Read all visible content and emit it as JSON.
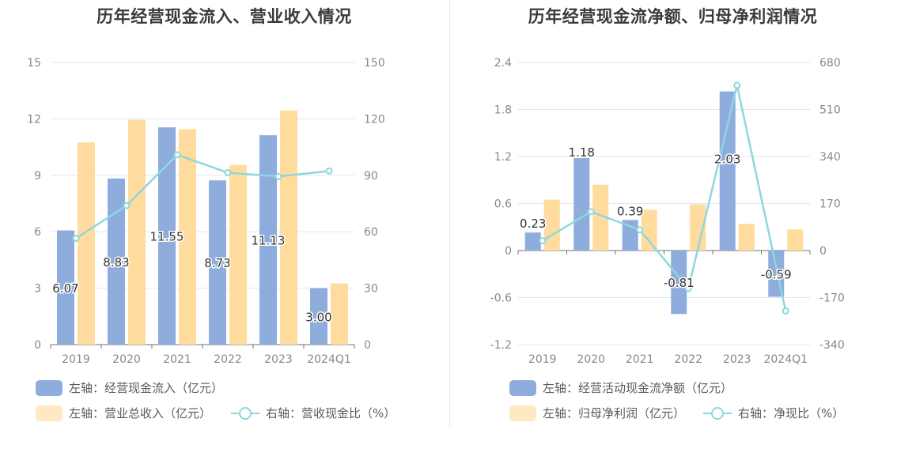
{
  "colors": {
    "bar_primary": "#8eaddc",
    "bar_secondary": "#ffdb9e",
    "line": "#8dd8dd",
    "grid": "#e3e6ef",
    "axis_text": "#888888",
    "label_text": "#333333"
  },
  "chart_data": [
    {
      "type": "bar",
      "title": "历年经营现金流入、营业收入情况",
      "categories": [
        "2019",
        "2020",
        "2021",
        "2022",
        "2023",
        "2024Q1"
      ],
      "y_left": {
        "ticks": [
          "0",
          "3",
          "6",
          "9",
          "12",
          "15"
        ],
        "min": 0,
        "max": 15
      },
      "y_right": {
        "ticks": [
          "0",
          "30",
          "60",
          "90",
          "120",
          "150"
        ],
        "min": 0,
        "max": 150
      },
      "series": [
        {
          "name": "左轴：经营现金流入（亿元）",
          "axis": "left",
          "kind": "bar",
          "values": [
            6.07,
            8.83,
            11.55,
            8.73,
            11.13,
            3.0
          ],
          "labels": [
            "6.07",
            "8.83",
            "11.55",
            "8.73",
            "11.13",
            "3.00"
          ]
        },
        {
          "name": "左轴：营业总收入（亿元）",
          "axis": "left",
          "kind": "bar",
          "values": [
            10.75,
            11.95,
            11.45,
            9.55,
            12.45,
            3.25
          ]
        },
        {
          "name": "右轴：营收现金比（%）",
          "axis": "right",
          "kind": "line",
          "values": [
            56.5,
            73.9,
            100.9,
            91.4,
            89.4,
            92.3
          ]
        }
      ],
      "legend": "bottom-left",
      "grid": true
    },
    {
      "type": "bar",
      "title": "历年经营现金流净额、归母净利润情况",
      "categories": [
        "2019",
        "2020",
        "2021",
        "2022",
        "2023",
        "2024Q1"
      ],
      "y_left": {
        "ticks": [
          "-1.2",
          "-0.6",
          "0",
          "0.6",
          "1.2",
          "1.8",
          "2.4"
        ],
        "min": -1.2,
        "max": 2.4
      },
      "y_right": {
        "ticks": [
          "-340",
          "-170",
          "0",
          "170",
          "340",
          "510",
          "680"
        ],
        "min": -340,
        "max": 680
      },
      "series": [
        {
          "name": "左轴：经营活动现金流净额（亿元）",
          "axis": "left",
          "kind": "bar",
          "values": [
            0.23,
            1.18,
            0.39,
            -0.81,
            2.03,
            -0.59
          ],
          "labels": [
            "0.23",
            "1.18",
            "0.39",
            "-0.81",
            "2.03",
            "-0.59"
          ]
        },
        {
          "name": "左轴：归母净利润（亿元）",
          "axis": "left",
          "kind": "bar",
          "values": [
            0.65,
            0.84,
            0.52,
            0.59,
            0.34,
            0.27
          ]
        },
        {
          "name": "右轴：净现比（%）",
          "axis": "right",
          "kind": "line",
          "values": [
            35.4,
            140.5,
            75.0,
            -137.3,
            597.1,
            -218.5
          ]
        }
      ],
      "legend": "bottom-left",
      "grid": true
    }
  ]
}
